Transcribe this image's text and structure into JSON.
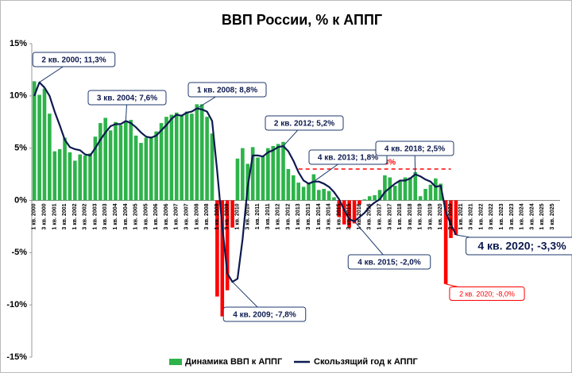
{
  "chart_data": {
    "type": "bar_line",
    "title": "ВВП России, % к АППГ",
    "categories": [
      "1 кв. 2000",
      null,
      "3 кв. 2000",
      null,
      "1 кв. 2001",
      null,
      "3 кв. 2001",
      null,
      "1 кв. 2002",
      null,
      "3 кв. 2002",
      null,
      "1 кв. 2003",
      null,
      "3 кв. 2003",
      null,
      "1 кв. 2004",
      null,
      "3 кв. 2004",
      null,
      "1 кв. 2005",
      null,
      "3 кв. 2005",
      null,
      "1 кв. 2006",
      null,
      "3 кв. 2006",
      null,
      "1 кв. 2007",
      null,
      "3 кв. 2007",
      null,
      "1 кв. 2008",
      null,
      "3 кв. 2008",
      null,
      "1 кв. 2009",
      null,
      "3 кв. 2009",
      null,
      "1 кв. 2010",
      null,
      "3 кв. 2010",
      null,
      "1 кв. 2011",
      null,
      "3 кв. 2011",
      null,
      "1 кв. 2012",
      null,
      "3 кв. 2012",
      null,
      "1 кв. 2013",
      null,
      "3 кв. 2013",
      null,
      "1 кв. 2014",
      null,
      "3 кв. 2014",
      null,
      "1 кв. 2015",
      null,
      "3 кв. 2015",
      null,
      "1 кв. 2016",
      null,
      "3 кв. 2016",
      null,
      "1 кв. 2017",
      null,
      "3 кв. 2017",
      null,
      "1 кв. 2018",
      null,
      "3 кв. 2018",
      null,
      "1 кв. 2019",
      null,
      "3 кв. 2019",
      null,
      "1 кв. 2020",
      null,
      "3 кв. 2020",
      null,
      "1 кв. 2021",
      null,
      "3 кв. 2021",
      null,
      "1 кв. 2022",
      null,
      "3 кв. 2022",
      null,
      "1 кв. 2023",
      null,
      "3 кв. 2023",
      null,
      "1 кв. 2024",
      null,
      "3 кв. 2024",
      null,
      "1 кв. 2025",
      null,
      "3 кв. 2025",
      null
    ],
    "series": [
      {
        "name": "Динамика ВВП к АППГ",
        "kind": "bar",
        "color": "#2db34a",
        "negative_color": "#ff0000",
        "values": [
          11.4,
          10.1,
          10.7,
          8.3,
          4.7,
          4.9,
          6.0,
          4.6,
          3.8,
          4.4,
          4.3,
          4.5,
          6.1,
          7.4,
          7.9,
          6.7,
          7.5,
          7.2,
          7.6,
          7.7,
          6.2,
          5.5,
          6.0,
          6.1,
          6.6,
          7.4,
          8.0,
          8.2,
          8.4,
          8.2,
          8.5,
          8.3,
          9.2,
          9.2,
          8.0,
          6.4,
          -9.2,
          -11.1,
          -8.6,
          -2.6,
          4.0,
          5.0,
          3.5,
          5.1,
          4.1,
          4.2,
          5.0,
          5.2,
          5.4,
          5.6,
          3.0,
          2.4,
          1.7,
          1.3,
          1.7,
          2.5,
          1.0,
          1.1,
          0.9,
          0.3,
          -1.6,
          -2.3,
          -2.6,
          -2.2,
          -0.4,
          0.1,
          0.4,
          0.5,
          1.0,
          2.4,
          2.2,
          1.4,
          1.9,
          2.2,
          2.2,
          2.7,
          0.4,
          1.1,
          1.5,
          2.1,
          1.6,
          -8.0,
          -3.6,
          -3.3,
          null,
          null,
          null,
          null,
          null,
          null,
          null,
          null,
          null,
          null,
          null,
          null,
          null,
          null,
          null,
          null,
          null,
          null,
          null,
          null
        ]
      },
      {
        "name": "Скользящий год к АППГ",
        "kind": "line",
        "color": "#0d1a4f",
        "values": [
          10.0,
          11.3,
          10.8,
          10.0,
          8.5,
          7.2,
          5.8,
          5.1,
          4.9,
          4.8,
          4.4,
          4.3,
          5.0,
          5.8,
          6.5,
          7.1,
          7.3,
          7.3,
          7.6,
          7.4,
          7.0,
          6.5,
          6.1,
          6.0,
          6.2,
          6.7,
          7.2,
          7.8,
          8.2,
          8.1,
          8.4,
          8.5,
          8.8,
          8.7,
          8.5,
          7.6,
          2.8,
          -2.5,
          -7.0,
          -7.8,
          -7.5,
          -3.7,
          1.3,
          4.3,
          4.3,
          4.2,
          4.6,
          4.8,
          5.1,
          5.2,
          4.7,
          3.8,
          2.7,
          1.9,
          1.6,
          1.8,
          1.8,
          1.6,
          1.3,
          0.8,
          0.1,
          -0.9,
          -1.8,
          -2.0,
          -1.6,
          -1.2,
          -0.6,
          -0.2,
          0.1,
          0.8,
          1.2,
          1.6,
          1.9,
          1.9,
          2.1,
          2.5,
          2.3,
          2.0,
          1.8,
          1.3,
          1.4,
          -1.1,
          -2.3,
          -3.3,
          null,
          null,
          null,
          null,
          null,
          null,
          null,
          null,
          null,
          null,
          null,
          null,
          null,
          null,
          null,
          null,
          null,
          null,
          null,
          null
        ]
      }
    ],
    "ylim": [
      -15,
      15
    ],
    "yticks": [
      {
        "value": -15,
        "label": "-15%"
      },
      {
        "value": -10,
        "label": "-10%"
      },
      {
        "value": -5,
        "label": "-5%"
      },
      {
        "value": 0,
        "label": "0%"
      },
      {
        "value": 5,
        "label": "5%"
      },
      {
        "value": 10,
        "label": "10%"
      },
      {
        "value": 15,
        "label": "15%"
      }
    ],
    "grid": false,
    "legend": "bottom",
    "reference_line": {
      "value": 3,
      "label": "3%",
      "color": "#ff0000"
    },
    "annotations": [
      "2 кв. 2000; 11,3%",
      "3 кв. 2004; 7,6%",
      "1 кв. 2008; 8,8%",
      "2 кв. 2012; 5,2%",
      "4 кв. 2013; 1,8%",
      "4 кв. 2018; 2,5%",
      "4 кв. 2009; -7,8%",
      "4 кв. 2015; -2,0%",
      "4 кв. 2020; -3,3%",
      "2 кв. 2020; -8,0%"
    ]
  }
}
